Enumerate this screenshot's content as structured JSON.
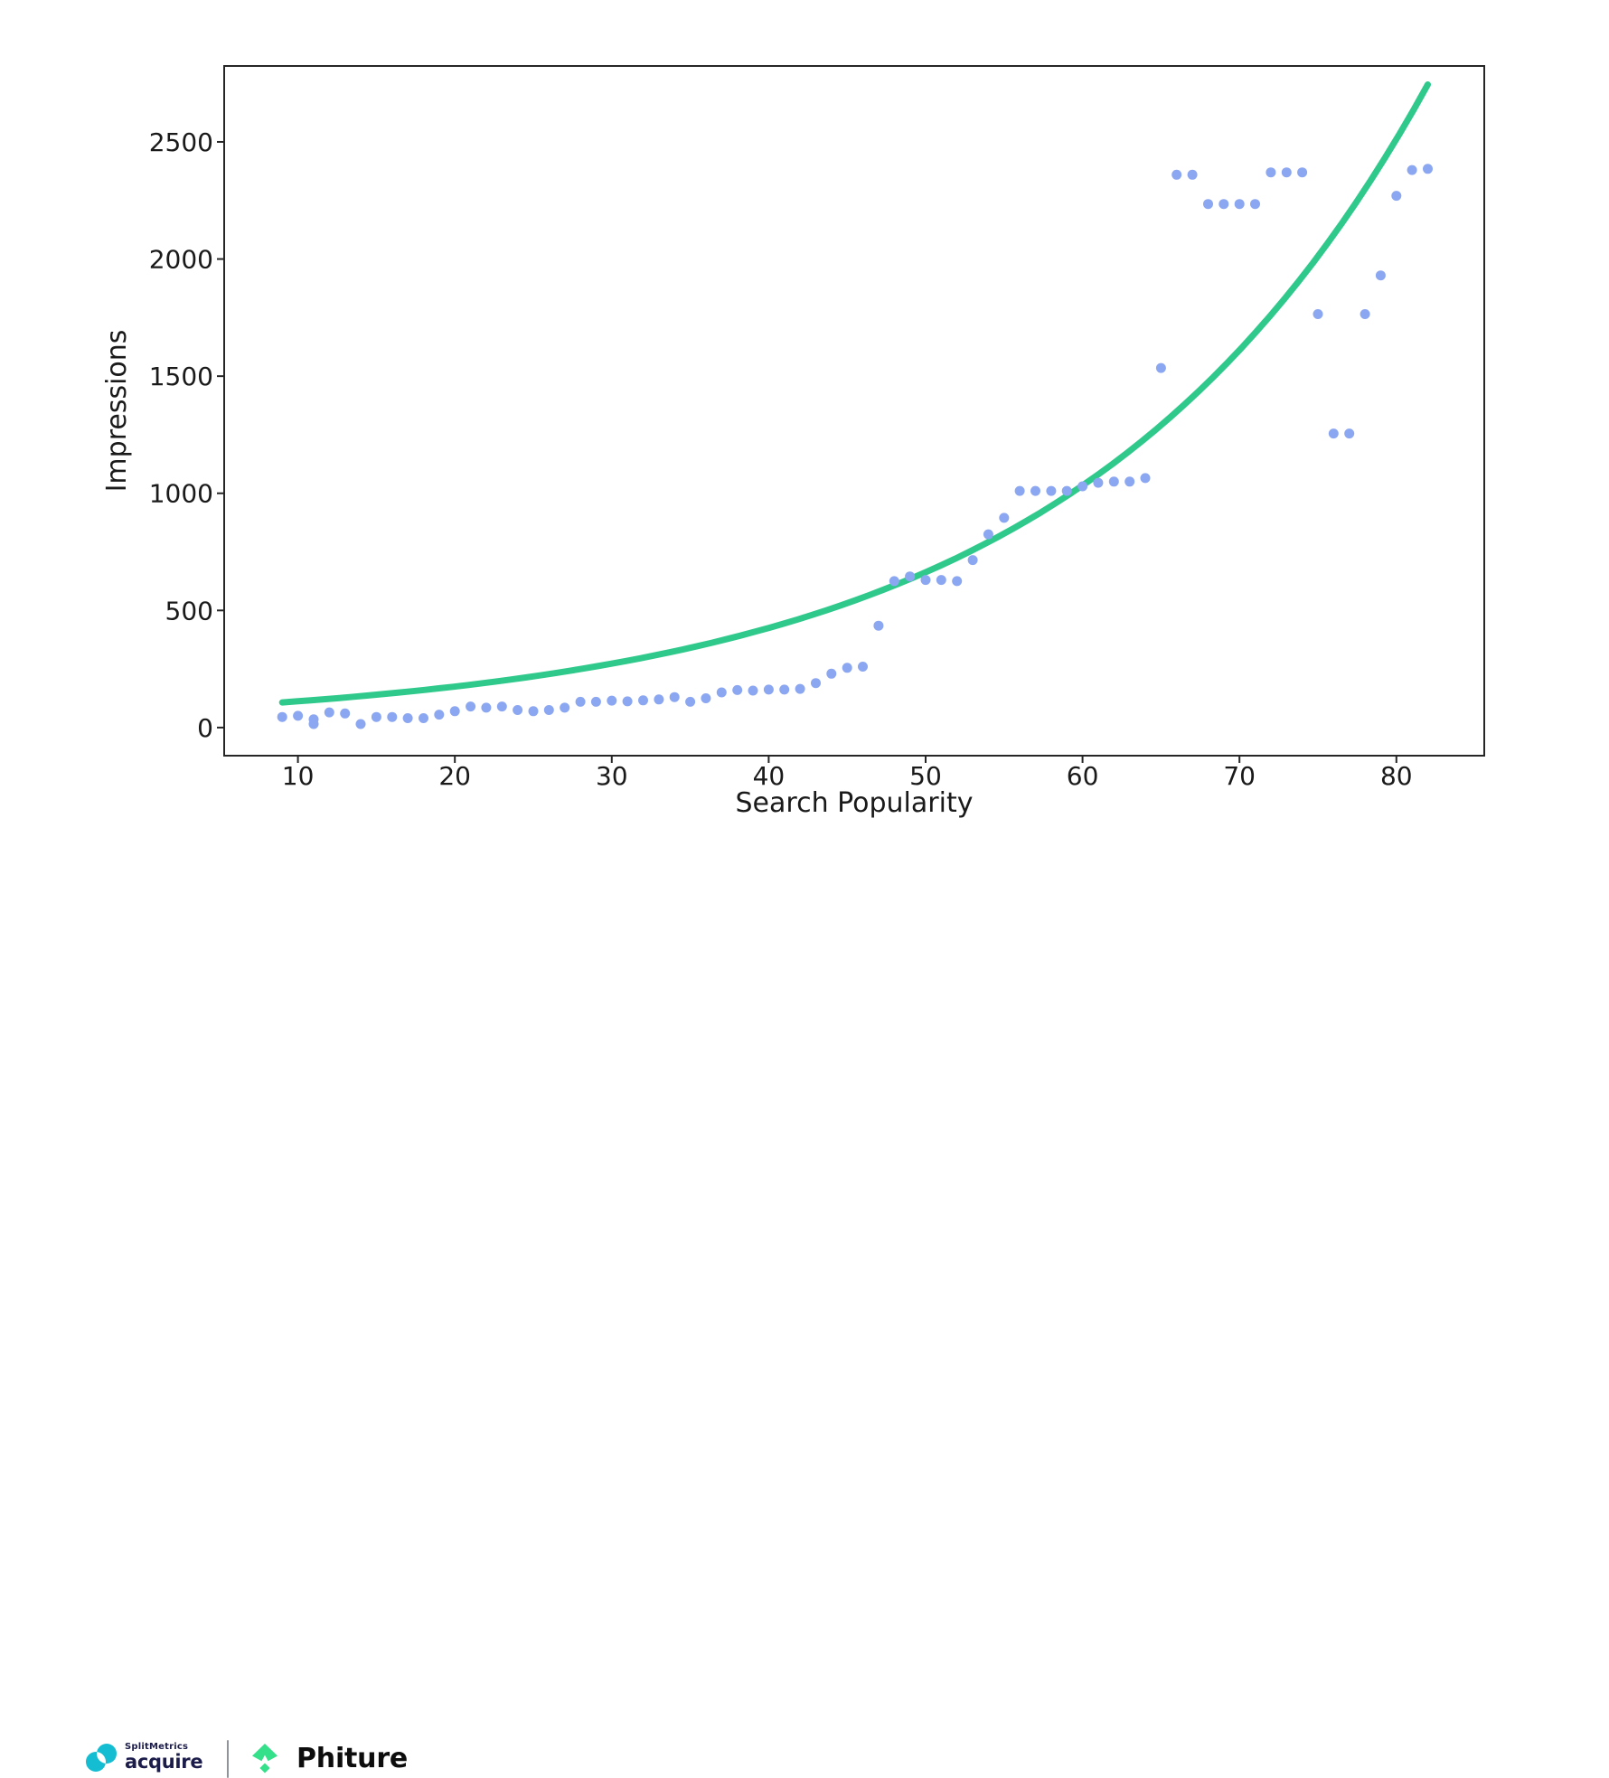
{
  "chart_data": {
    "type": "scatter",
    "title": "",
    "xlabel": "Search Popularity",
    "ylabel": "Impressions",
    "xlim": [
      5.3,
      85.6
    ],
    "ylim": [
      -120,
      2824
    ],
    "x_ticks": [
      10,
      20,
      30,
      40,
      50,
      60,
      70,
      80
    ],
    "y_ticks": [
      0,
      500,
      1000,
      1500,
      2000,
      2500
    ],
    "grid": false,
    "legend": "none",
    "frame_color": "#262626",
    "series": [
      {
        "name": "impressions-observations",
        "type": "scatter",
        "color": "#8ca7f1",
        "marker_radius": 5.5,
        "points": [
          [
            9,
            45
          ],
          [
            10,
            50
          ],
          [
            11,
            35
          ],
          [
            11,
            15
          ],
          [
            12,
            65
          ],
          [
            13,
            60
          ],
          [
            14,
            15
          ],
          [
            15,
            45
          ],
          [
            16,
            45
          ],
          [
            17,
            40
          ],
          [
            18,
            40
          ],
          [
            19,
            55
          ],
          [
            20,
            70
          ],
          [
            21,
            90
          ],
          [
            22,
            85
          ],
          [
            23,
            90
          ],
          [
            24,
            75
          ],
          [
            25,
            70
          ],
          [
            26,
            75
          ],
          [
            27,
            85
          ],
          [
            28,
            110
          ],
          [
            29,
            110
          ],
          [
            30,
            115
          ],
          [
            31,
            112
          ],
          [
            32,
            116
          ],
          [
            33,
            120
          ],
          [
            34,
            130
          ],
          [
            35,
            110
          ],
          [
            36,
            125
          ],
          [
            37,
            150
          ],
          [
            38,
            160
          ],
          [
            39,
            158
          ],
          [
            40,
            162
          ],
          [
            41,
            162
          ],
          [
            42,
            165
          ],
          [
            43,
            190
          ],
          [
            44,
            230
          ],
          [
            45,
            255
          ],
          [
            46,
            260
          ],
          [
            47,
            435
          ],
          [
            48,
            625
          ],
          [
            49,
            645
          ],
          [
            50,
            630
          ],
          [
            51,
            630
          ],
          [
            52,
            625
          ],
          [
            53,
            715
          ],
          [
            54,
            825
          ],
          [
            55,
            895
          ],
          [
            56,
            1010
          ],
          [
            57,
            1010
          ],
          [
            58,
            1010
          ],
          [
            59,
            1010
          ],
          [
            60,
            1030
          ],
          [
            61,
            1045
          ],
          [
            62,
            1050
          ],
          [
            63,
            1050
          ],
          [
            64,
            1065
          ],
          [
            65,
            1535
          ],
          [
            66,
            2360
          ],
          [
            67,
            2360
          ],
          [
            68,
            2235
          ],
          [
            69,
            2235
          ],
          [
            70,
            2235
          ],
          [
            71,
            2235
          ],
          [
            72,
            2370
          ],
          [
            73,
            2370
          ],
          [
            74,
            2370
          ],
          [
            75,
            1765
          ],
          [
            76,
            1255
          ],
          [
            77,
            1255
          ],
          [
            78,
            1765
          ],
          [
            79,
            1930
          ],
          [
            80,
            2270
          ],
          [
            81,
            2380
          ],
          [
            82,
            2385
          ]
        ]
      },
      {
        "name": "exponential-trend",
        "type": "line",
        "color": "#2fc98c",
        "line_width": 7,
        "model": "y = a * exp(b * x)",
        "fit_params": {
          "a": 72,
          "b": 0.0444
        },
        "x_range": [
          9,
          82
        ]
      }
    ]
  },
  "footer": {
    "splitmetrics": {
      "brand_top": "SplitMetrics",
      "brand_bottom": "acquire",
      "icon_color": "#14bdd1",
      "text_color": "#1b1c4a"
    },
    "divider_color": "#8e939c",
    "phiture": {
      "label": "Phiture",
      "icon_color": "#35e08a",
      "text_color": "#0d0d0d"
    }
  }
}
